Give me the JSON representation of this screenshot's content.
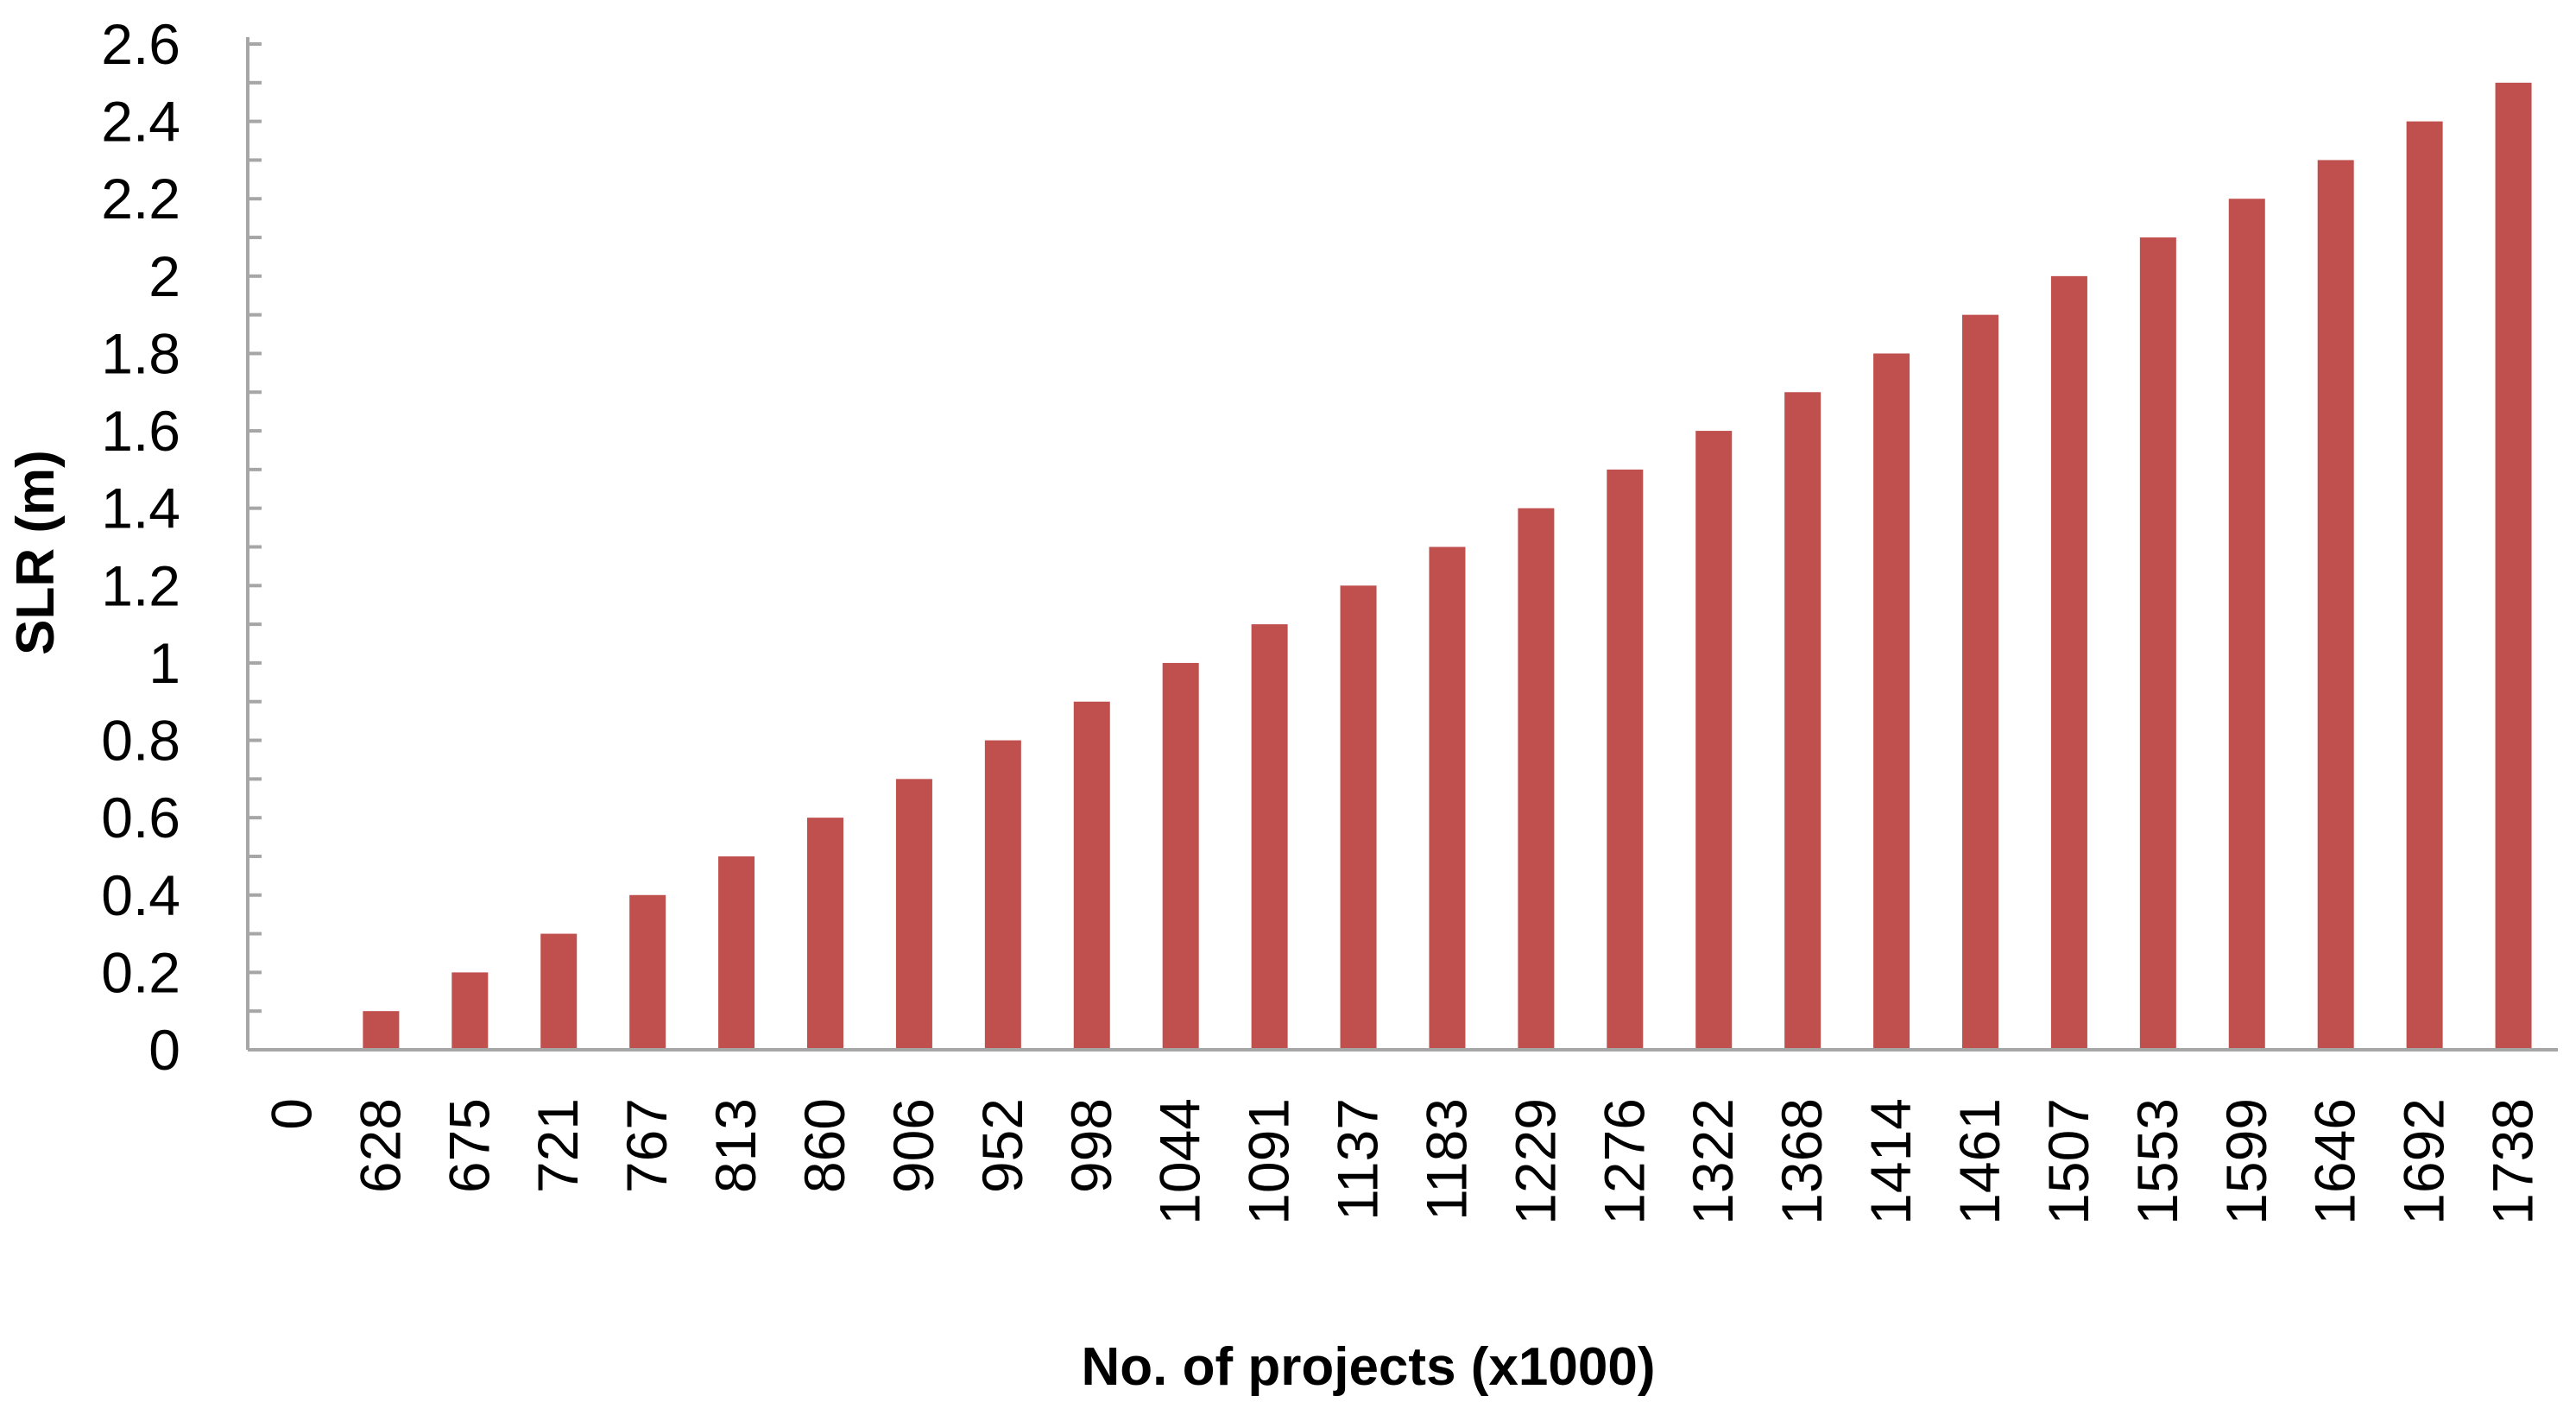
{
  "chart_data": {
    "type": "bar",
    "title": "",
    "xlabel": "No. of projects (x1000)",
    "ylabel": "SLR (m)",
    "ylim": [
      0,
      2.6
    ],
    "y_major_step": 0.2,
    "y_minor_step": 0.1,
    "y_tick_labels": [
      "0",
      "0.2",
      "0.4",
      "0.6",
      "0.8",
      "1",
      "1.2",
      "1.4",
      "1.6",
      "1.8",
      "2",
      "2.2",
      "2.4",
      "2.6"
    ],
    "categories": [
      "0",
      "628",
      "675",
      "721",
      "767",
      "813",
      "860",
      "906",
      "952",
      "998",
      "1044",
      "1091",
      "1137",
      "1183",
      "1229",
      "1276",
      "1322",
      "1368",
      "1414",
      "1461",
      "1507",
      "1553",
      "1599",
      "1646",
      "1692",
      "1738"
    ],
    "values": [
      0,
      0.1,
      0.2,
      0.3,
      0.4,
      0.5,
      0.6,
      0.7,
      0.8,
      0.9,
      1.0,
      1.1,
      1.2,
      1.3,
      1.4,
      1.5,
      1.6,
      1.7,
      1.8,
      1.9,
      2.0,
      2.1,
      2.2,
      2.3,
      2.4,
      2.5
    ],
    "bar_color": "#C0504D",
    "axis_color": "#A6A6A6",
    "grid": false,
    "legend": "none"
  }
}
